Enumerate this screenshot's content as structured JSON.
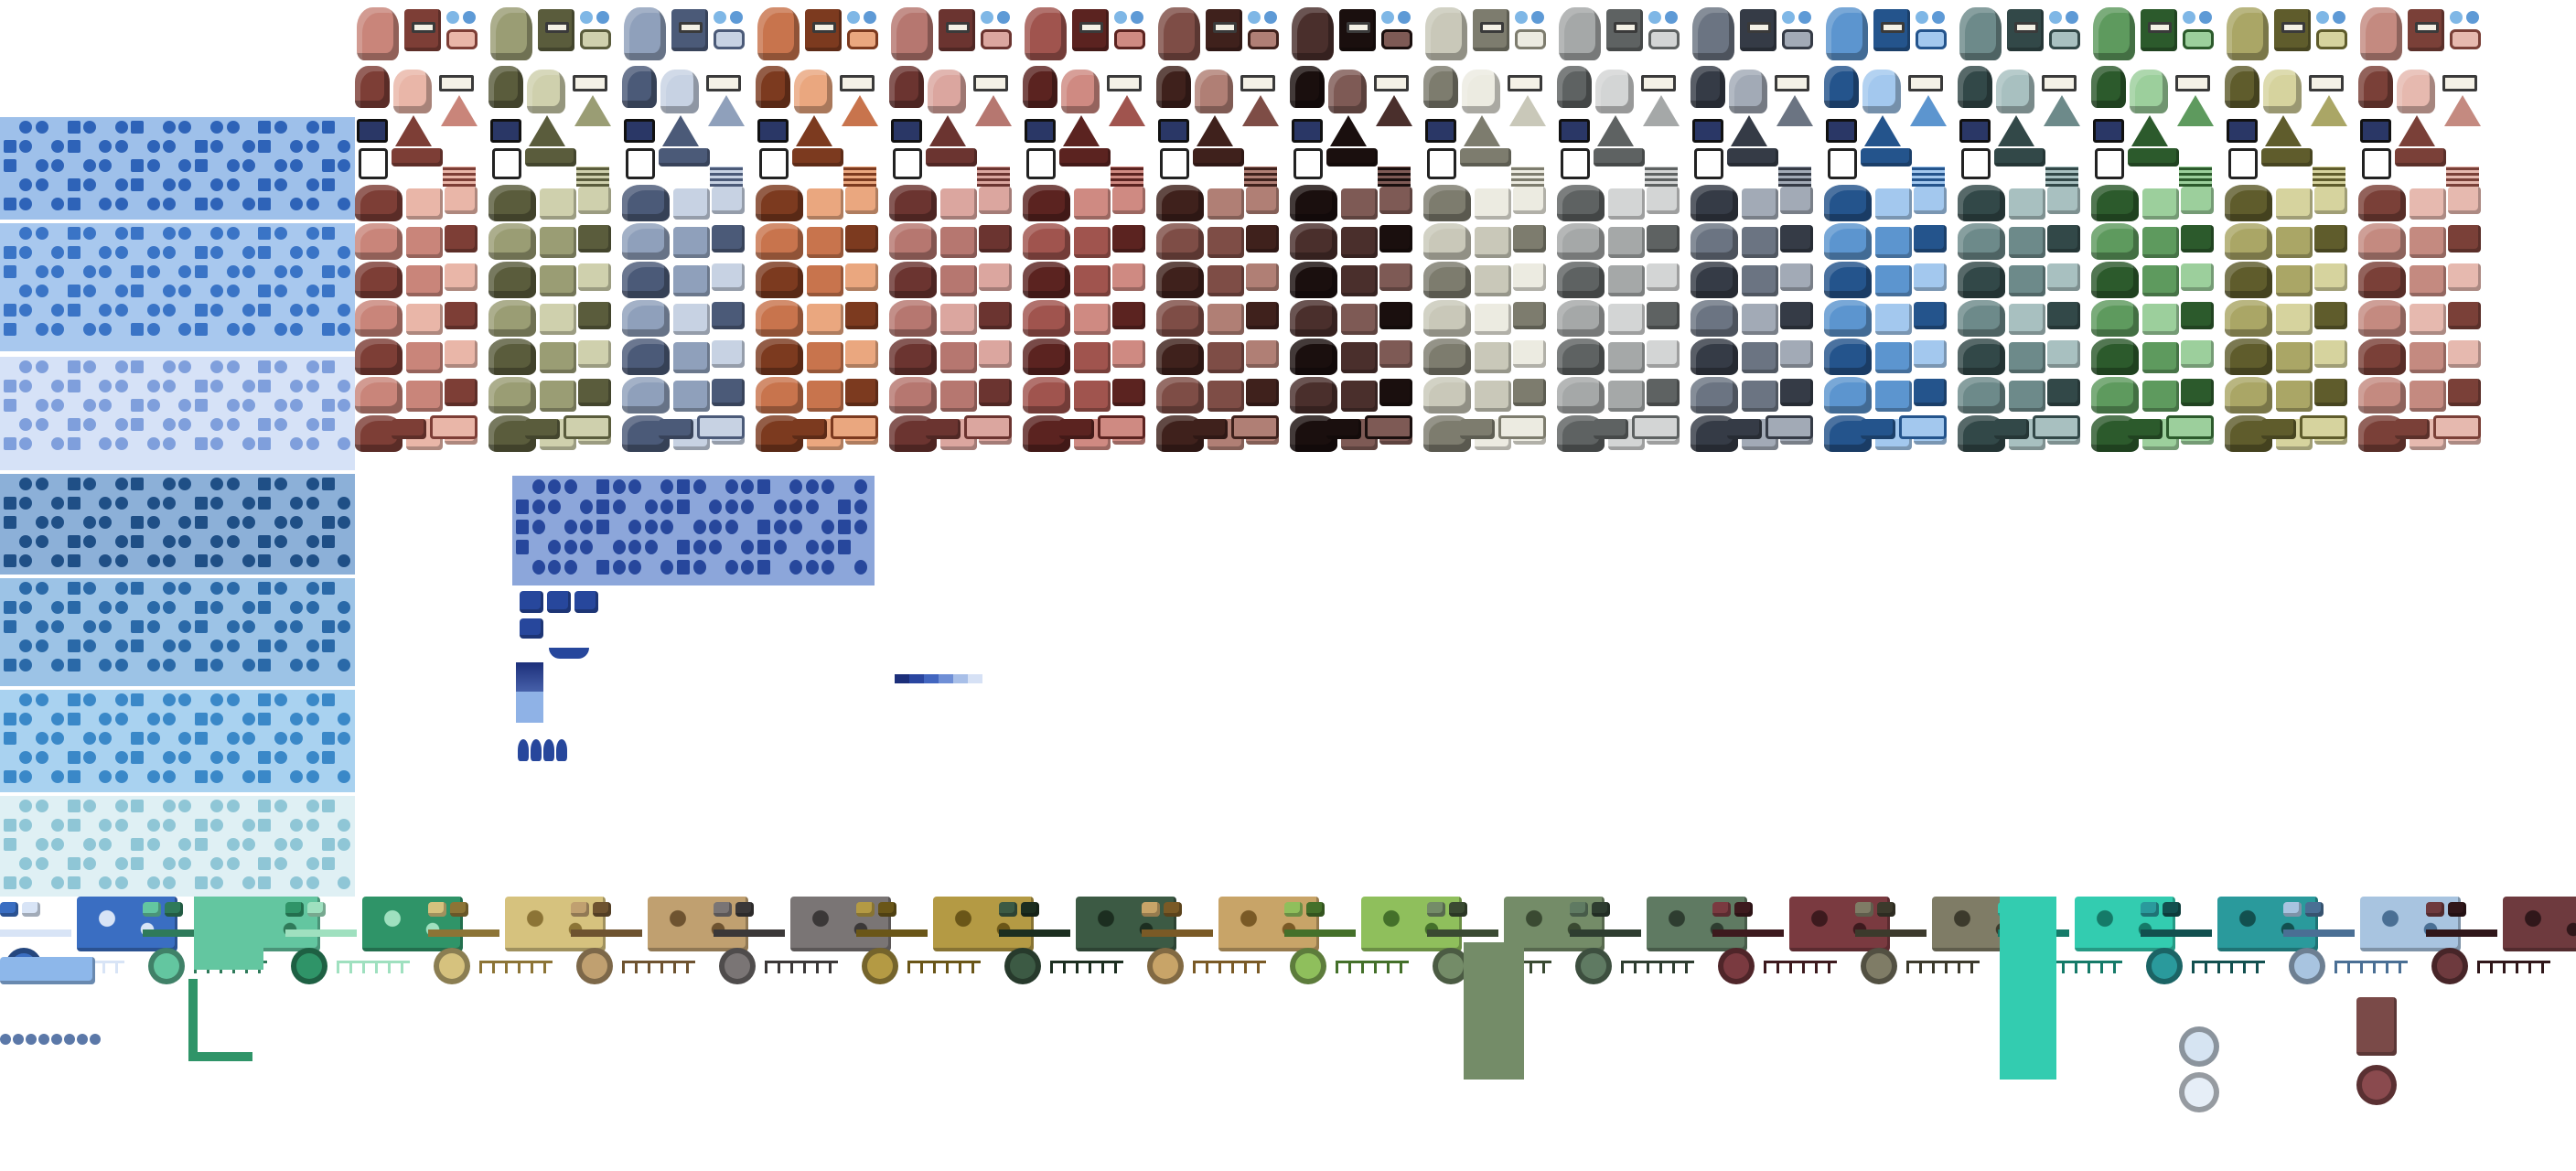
{
  "sheet": {
    "kind": "pixel-art tileset sheet",
    "background": "#ffffff"
  },
  "terrain_palettes": [
    {
      "name": "rose",
      "base": "#c9857a",
      "dark": "#7d3e36",
      "light": "#e9b6a8"
    },
    {
      "name": "olive",
      "base": "#9a9d74",
      "dark": "#5a5c3c",
      "light": "#cfd0ad"
    },
    {
      "name": "slate-blue",
      "base": "#8fa0bb",
      "dark": "#4b5a78",
      "light": "#c7d2e3"
    },
    {
      "name": "terracotta",
      "base": "#c8744d",
      "dark": "#7c3a1f",
      "light": "#eaa77f"
    },
    {
      "name": "dusty-red",
      "base": "#b67770",
      "dark": "#6b3430",
      "light": "#dba69f"
    },
    {
      "name": "maroon",
      "base": "#a0544e",
      "dark": "#5b2320",
      "light": "#cf8a82"
    },
    {
      "name": "brown",
      "base": "#7e4d46",
      "dark": "#3f211c",
      "light": "#b07f75"
    },
    {
      "name": "charcoal",
      "base": "#4a2f2c",
      "dark": "#1a0f0e",
      "light": "#7e5a55"
    },
    {
      "name": "bone",
      "base": "#c9c8b9",
      "dark": "#7d7c6e",
      "light": "#ecebe1"
    },
    {
      "name": "ash",
      "base": "#a5a8a8",
      "dark": "#5e6262",
      "light": "#d3d5d5"
    },
    {
      "name": "steel",
      "base": "#6b7482",
      "dark": "#353b46",
      "light": "#a2aab6"
    },
    {
      "name": "sky",
      "base": "#5c95cf",
      "dark": "#24548c",
      "light": "#a3c8ee"
    },
    {
      "name": "teal-grey",
      "base": "#6d8a8a",
      "dark": "#324848",
      "light": "#a8c0c0"
    },
    {
      "name": "forest",
      "base": "#5e9a5e",
      "dark": "#2c5a2c",
      "light": "#9ccf9c"
    },
    {
      "name": "khaki",
      "base": "#aaa666",
      "dark": "#5f5c2c",
      "light": "#d6d39e"
    },
    {
      "name": "blush",
      "base": "#c48a80",
      "dark": "#7a4038",
      "light": "#e6b9af"
    }
  ],
  "water_panels": [
    {
      "name": "deep-blue",
      "base": "#2e63b8",
      "light": "#9ec0ea"
    },
    {
      "name": "blue",
      "base": "#3a74c6",
      "light": "#a8c8ee"
    },
    {
      "name": "pale-blue",
      "base": "#7f9fdc",
      "light": "#d6e2f7"
    },
    {
      "name": "navy",
      "base": "#1f4f86",
      "light": "#8cb0d8"
    },
    {
      "name": "ocean",
      "base": "#2a69a8",
      "light": "#9cc3e6"
    },
    {
      "name": "cyan-blue",
      "base": "#3a88c8",
      "light": "#a9d2f0"
    },
    {
      "name": "ice",
      "base": "#8fc6d6",
      "light": "#dff0f4"
    }
  ],
  "small_water_block": {
    "base": "#27479c",
    "light": "#8ca6da"
  },
  "gradient_strip": [
    "#1c2f7a",
    "#2a46a0",
    "#4266c0",
    "#6f8fd6",
    "#a8bfe8",
    "#d6e1f5"
  ],
  "bottom_sets": [
    {
      "name": "blue",
      "base": "#3a6ec2",
      "accent": "#d8e4f6"
    },
    {
      "name": "mint",
      "base": "#63c6a0",
      "accent": "#2f7a5a"
    },
    {
      "name": "emerald",
      "base": "#2f9468",
      "accent": "#9fe0bf"
    },
    {
      "name": "sand",
      "base": "#d6c27e",
      "accent": "#8c7436"
    },
    {
      "name": "tan",
      "base": "#c0a070",
      "accent": "#6e5330"
    },
    {
      "name": "grey",
      "base": "#7a7575",
      "accent": "#3b3838"
    },
    {
      "name": "gold",
      "base": "#b49a44",
      "accent": "#6a5618"
    },
    {
      "name": "dark-green",
      "base": "#3c5a44",
      "accent": "#1c2e20"
    },
    {
      "name": "wheat",
      "base": "#c8a468",
      "accent": "#7a5a26"
    },
    {
      "name": "lime",
      "base": "#8fbf5c",
      "accent": "#44702a"
    },
    {
      "name": "moss",
      "base": "#748c68",
      "accent": "#3a4a32"
    },
    {
      "name": "sage",
      "base": "#5f7a62",
      "accent": "#2e3d30"
    },
    {
      "name": "wine",
      "base": "#7a3a40",
      "accent": "#3d1a1e"
    },
    {
      "name": "stone",
      "base": "#7f7c66",
      "accent": "#3c3a2c"
    },
    {
      "name": "aqua",
      "base": "#33ccb0",
      "accent": "#157a68"
    },
    {
      "name": "teal",
      "base": "#2a9a9c",
      "accent": "#12504f"
    },
    {
      "name": "frost",
      "base": "#a8c4e0",
      "accent": "#4a6f94"
    },
    {
      "name": "plum",
      "base": "#6e3a3e",
      "accent": "#30171a"
    }
  ]
}
